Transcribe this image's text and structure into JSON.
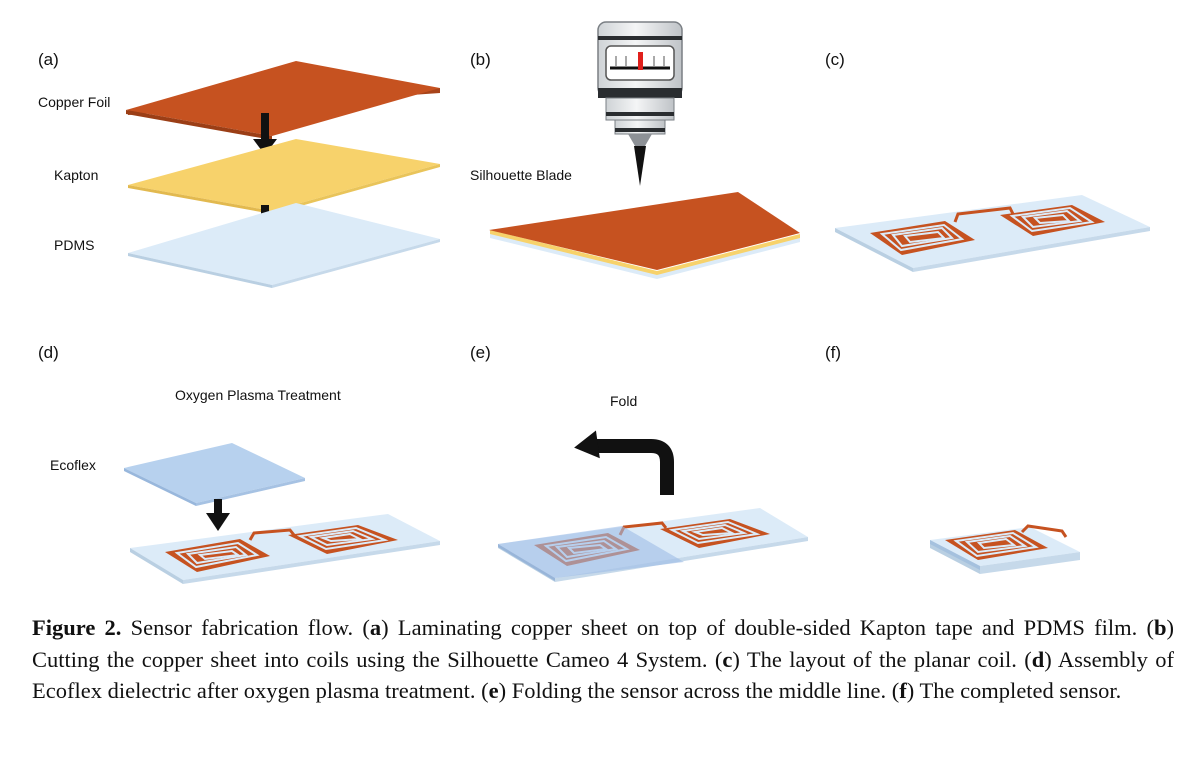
{
  "panels": {
    "a": {
      "label": "(a)",
      "copper_foil": "Copper Foil",
      "kapton": "Kapton",
      "pdms": "PDMS"
    },
    "b": {
      "label": "(b)",
      "blade": "Silhouette Blade"
    },
    "c": {
      "label": "(c)"
    },
    "d": {
      "label": "(d)",
      "treatment": "Oxygen Plasma Treatment",
      "ecoflex": "Ecoflex"
    },
    "e": {
      "label": "(e)",
      "fold": "Fold"
    },
    "f": {
      "label": "(f)"
    }
  },
  "caption": {
    "figure_label": "Figure 2.",
    "title": "Sensor fabrication flow.",
    "items": [
      {
        "key": "a",
        "text": "Laminating copper sheet on top of double-sided Kapton tape and PDMS film."
      },
      {
        "key": "b",
        "text": "Cutting the copper sheet into coils using the Silhouette Cameo 4 System."
      },
      {
        "key": "c",
        "text": "The layout of the planar coil."
      },
      {
        "key": "d",
        "text": "Assembly of Ecoflex dielectric after oxygen plasma treatment."
      },
      {
        "key": "e",
        "text": "Folding the sensor across the middle line."
      },
      {
        "key": "f",
        "text": "The completed sensor."
      }
    ]
  },
  "colors": {
    "copper": "#c65220",
    "copper_edge": "#a8441a",
    "kapton": "#f7d26b",
    "pdms": "#dcebf8",
    "pdms_edge": "#b9cfe2",
    "ecoflex": "#b7d1ee",
    "arrow": "#111111",
    "needle_red": "#e0201c"
  },
  "icons": [
    "down-arrow-icon",
    "fold-arrow-icon",
    "blade-cutter-icon",
    "coil-icon"
  ]
}
